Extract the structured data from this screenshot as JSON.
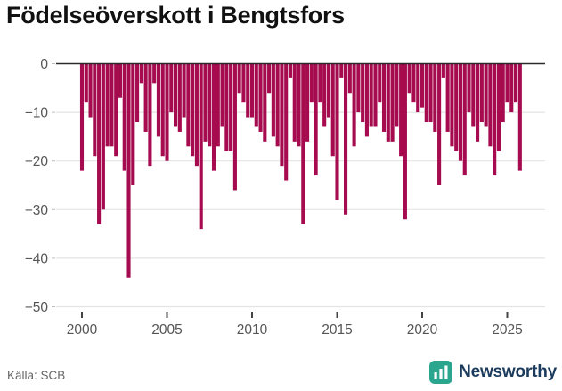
{
  "title": "Födelseöverskott i Bengtsfors",
  "footer": {
    "source": "Källa: SCB",
    "brand": "Newsworthy"
  },
  "colors": {
    "bar": "#a50b4e",
    "zero_line": "#2b2b2b",
    "grid": "#e4e4e4",
    "axis_text": "#555555",
    "title_text": "#111111",
    "source_text": "#666666",
    "brand_text": "#1c3c5e",
    "brand_icon": "#2aa58e"
  },
  "chart_data": {
    "type": "bar",
    "title": "Födelseöverskott i Bengtsfors",
    "xlabel": "",
    "ylabel": "",
    "grid": true,
    "legend": "none",
    "x_axis": {
      "start_year": 2000,
      "frequency": "quarterly",
      "tick_years": [
        2000,
        2005,
        2010,
        2015,
        2020,
        2025
      ]
    },
    "y_axis": {
      "ticks": [
        0,
        -10,
        -20,
        -30,
        -40,
        -50
      ],
      "range": [
        -50,
        0
      ]
    },
    "series": [
      {
        "name": "Födelseöverskott",
        "values": [
          -22,
          -8,
          -11,
          -19,
          -33,
          -30,
          -17,
          -17,
          -19,
          -7,
          -22,
          -44,
          -25,
          -12,
          -4,
          -14,
          -21,
          -4,
          -15,
          -19,
          -20,
          -10,
          -13,
          -14,
          -11,
          -17,
          -19,
          -21,
          -34,
          -16,
          -17,
          -22,
          -17,
          -13,
          -18,
          -18,
          -26,
          -6,
          -8,
          -11,
          -11,
          -13,
          -14,
          -16,
          -6,
          -15,
          -17,
          -21,
          -24,
          -3,
          -16,
          -17,
          -33,
          -16,
          -8,
          -23,
          -8,
          -13,
          -11,
          -19,
          -28,
          -3,
          -31,
          -6,
          -17,
          -10,
          -12,
          -15,
          -13,
          -13,
          -8,
          -14,
          -16,
          -16,
          -13,
          -19,
          -32,
          -6,
          -8,
          -10,
          -9,
          -12,
          -12,
          -14,
          -25,
          -3,
          -14,
          -17,
          -18,
          -20,
          -23,
          -10,
          -13,
          -16,
          -12,
          -13,
          -17,
          -23,
          -18,
          -12,
          -8,
          -10,
          -8,
          -22
        ]
      }
    ]
  }
}
